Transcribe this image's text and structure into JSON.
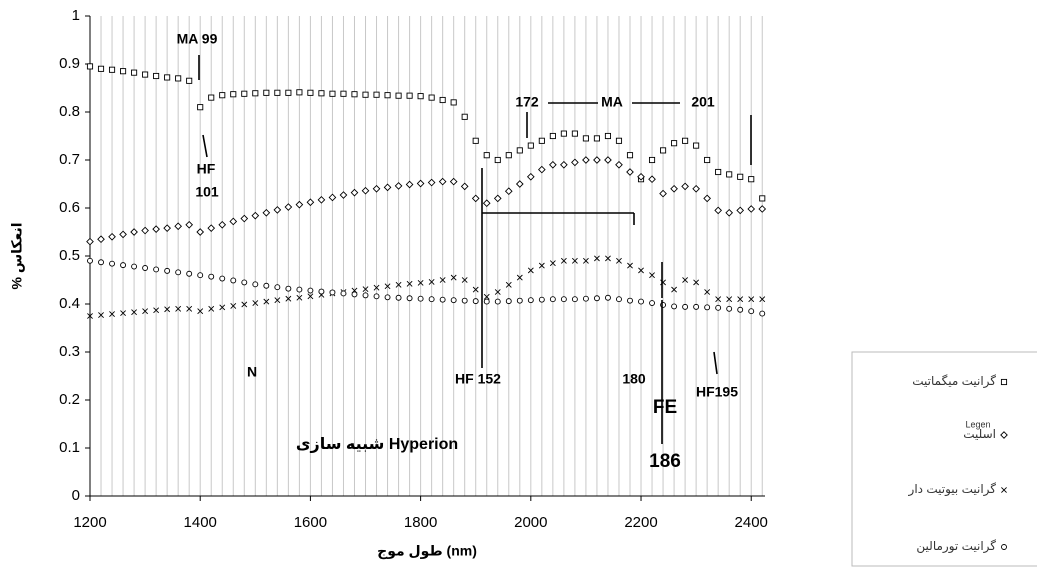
{
  "chart_data": {
    "type": "scatter",
    "xlabel": "طول موج (nm)",
    "ylabel": "% انعکاس",
    "xlim": [
      1200,
      2425
    ],
    "ylim": [
      0,
      1
    ],
    "xticks": [
      1200,
      1400,
      1600,
      1800,
      2000,
      2200,
      2400
    ],
    "yticks": [
      0,
      0.1,
      0.2,
      0.3,
      0.4,
      0.5,
      0.6,
      0.7,
      0.8,
      0.9,
      1
    ],
    "grid": "x",
    "x": [
      1200,
      1220,
      1240,
      1260,
      1280,
      1300,
      1320,
      1340,
      1360,
      1380,
      1400,
      1420,
      1440,
      1460,
      1480,
      1500,
      1520,
      1540,
      1560,
      1580,
      1600,
      1620,
      1640,
      1660,
      1680,
      1700,
      1720,
      1740,
      1760,
      1780,
      1800,
      1820,
      1840,
      1860,
      1880,
      1900,
      1920,
      1940,
      1960,
      1980,
      2000,
      2020,
      2040,
      2060,
      2080,
      2100,
      2120,
      2140,
      2160,
      2180,
      2200,
      2220,
      2240,
      2260,
      2280,
      2300,
      2320,
      2340,
      2360,
      2380,
      2400,
      2420
    ],
    "series": [
      {
        "name": "گرانیت میگماتیت",
        "color": "#000000",
        "marker": "square",
        "values": [
          0.895,
          0.89,
          0.888,
          0.885,
          0.882,
          0.878,
          0.875,
          0.872,
          0.87,
          0.865,
          0.81,
          0.83,
          0.835,
          0.837,
          0.838,
          0.839,
          0.84,
          0.84,
          0.84,
          0.841,
          0.84,
          0.839,
          0.838,
          0.838,
          0.837,
          0.836,
          0.836,
          0.835,
          0.834,
          0.834,
          0.833,
          0.83,
          0.825,
          0.82,
          0.79,
          0.74,
          0.71,
          0.7,
          0.71,
          0.72,
          0.73,
          0.74,
          0.75,
          0.755,
          0.755,
          0.745,
          0.745,
          0.75,
          0.74,
          0.71,
          0.66,
          0.7,
          0.72,
          0.735,
          0.74,
          0.73,
          0.7,
          0.675,
          0.67,
          0.665,
          0.66,
          0.62
        ]
      },
      {
        "name": "اسلیت",
        "color": "#000000",
        "marker": "diamond",
        "values": [
          0.53,
          0.535,
          0.54,
          0.545,
          0.55,
          0.553,
          0.556,
          0.558,
          0.562,
          0.565,
          0.55,
          0.558,
          0.565,
          0.572,
          0.578,
          0.584,
          0.59,
          0.596,
          0.602,
          0.607,
          0.612,
          0.617,
          0.622,
          0.627,
          0.632,
          0.636,
          0.64,
          0.643,
          0.646,
          0.649,
          0.651,
          0.653,
          0.655,
          0.655,
          0.645,
          0.62,
          0.61,
          0.62,
          0.635,
          0.65,
          0.665,
          0.68,
          0.69,
          0.69,
          0.695,
          0.7,
          0.7,
          0.7,
          0.69,
          0.675,
          0.665,
          0.66,
          0.63,
          0.64,
          0.645,
          0.64,
          0.62,
          0.595,
          0.59,
          0.595,
          0.598,
          0.598
        ]
      },
      {
        "name": "گرانیت بیوتیت دار",
        "color": "#000000",
        "marker": "cross",
        "values": [
          0.375,
          0.377,
          0.379,
          0.381,
          0.383,
          0.385,
          0.387,
          0.389,
          0.39,
          0.39,
          0.385,
          0.39,
          0.393,
          0.396,
          0.399,
          0.402,
          0.405,
          0.408,
          0.411,
          0.413,
          0.416,
          0.419,
          0.422,
          0.425,
          0.428,
          0.431,
          0.434,
          0.437,
          0.44,
          0.442,
          0.444,
          0.446,
          0.45,
          0.455,
          0.45,
          0.43,
          0.415,
          0.425,
          0.44,
          0.455,
          0.47,
          0.48,
          0.485,
          0.49,
          0.49,
          0.49,
          0.495,
          0.495,
          0.49,
          0.48,
          0.47,
          0.46,
          0.445,
          0.43,
          0.45,
          0.445,
          0.425,
          0.41,
          0.41,
          0.41,
          0.41,
          0.41
        ]
      },
      {
        "name": "گرانیت تورمالین",
        "color": "#000000",
        "marker": "circle",
        "values": [
          0.49,
          0.487,
          0.484,
          0.481,
          0.478,
          0.475,
          0.472,
          0.469,
          0.466,
          0.463,
          0.46,
          0.457,
          0.453,
          0.449,
          0.445,
          0.441,
          0.438,
          0.435,
          0.432,
          0.43,
          0.428,
          0.426,
          0.424,
          0.422,
          0.42,
          0.418,
          0.416,
          0.414,
          0.413,
          0.412,
          0.411,
          0.41,
          0.409,
          0.408,
          0.407,
          0.406,
          0.405,
          0.405,
          0.406,
          0.407,
          0.408,
          0.409,
          0.41,
          0.41,
          0.41,
          0.411,
          0.412,
          0.413,
          0.41,
          0.407,
          0.405,
          0.402,
          0.398,
          0.395,
          0.394,
          0.394,
          0.393,
          0.392,
          0.39,
          0.388,
          0.385,
          0.38
        ]
      }
    ],
    "annotations": [
      "MA 99",
      "HF",
      "101",
      "172",
      "MA",
      "201",
      "HF 152",
      "180",
      "FE",
      "186",
      "HF195",
      "N",
      "شبیه سازی Hyperion",
      "Legen"
    ]
  }
}
